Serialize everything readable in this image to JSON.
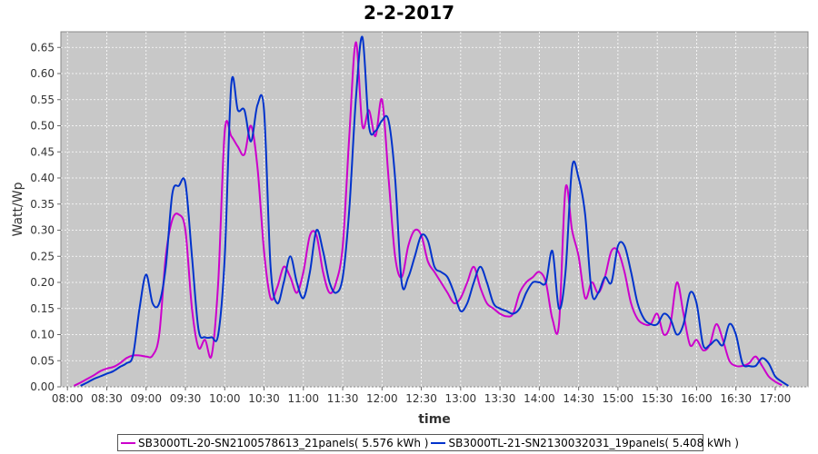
{
  "chart_data": {
    "type": "line",
    "title": "2-2-2017",
    "xlabel": "time",
    "ylabel": "Watt/Wp",
    "xlim": [
      "07:55",
      "17:25"
    ],
    "ylim": [
      0,
      0.68
    ],
    "yticks": [
      0.0,
      0.05,
      0.1,
      0.15,
      0.2,
      0.25,
      0.3,
      0.35,
      0.4,
      0.45,
      0.5,
      0.55,
      0.6,
      0.65
    ],
    "xticks": [
      "08:00",
      "08:30",
      "09:00",
      "09:30",
      "10:00",
      "10:30",
      "11:00",
      "11:30",
      "12:00",
      "12:30",
      "13:00",
      "13:30",
      "14:00",
      "14:30",
      "15:00",
      "15:30",
      "16:00",
      "16:30",
      "17:00"
    ],
    "grid": true,
    "plot_background": "#c8c8c8",
    "legend_position": "bottom",
    "series": [
      {
        "name": "SB3000TL-20-SN2100578613_21panels( 5.576 kWh )",
        "color": "#cc00cc",
        "points": [
          [
            "08:05",
            0.002
          ],
          [
            "08:10",
            0.008
          ],
          [
            "08:15",
            0.015
          ],
          [
            "08:20",
            0.022
          ],
          [
            "08:25",
            0.03
          ],
          [
            "08:30",
            0.035
          ],
          [
            "08:35",
            0.038
          ],
          [
            "08:40",
            0.045
          ],
          [
            "08:45",
            0.055
          ],
          [
            "08:50",
            0.06
          ],
          [
            "08:55",
            0.06
          ],
          [
            "09:00",
            0.058
          ],
          [
            "09:05",
            0.06
          ],
          [
            "09:10",
            0.1
          ],
          [
            "09:15",
            0.25
          ],
          [
            "09:20",
            0.32
          ],
          [
            "09:25",
            0.33
          ],
          [
            "09:30",
            0.3
          ],
          [
            "09:35",
            0.15
          ],
          [
            "09:40",
            0.075
          ],
          [
            "09:45",
            0.09
          ],
          [
            "09:50",
            0.06
          ],
          [
            "09:55",
            0.2
          ],
          [
            "10:00",
            0.49
          ],
          [
            "10:05",
            0.48
          ],
          [
            "10:10",
            0.46
          ],
          [
            "10:15",
            0.445
          ],
          [
            "10:20",
            0.5
          ],
          [
            "10:25",
            0.42
          ],
          [
            "10:30",
            0.26
          ],
          [
            "10:35",
            0.17
          ],
          [
            "10:40",
            0.19
          ],
          [
            "10:45",
            0.23
          ],
          [
            "10:50",
            0.21
          ],
          [
            "10:55",
            0.18
          ],
          [
            "11:00",
            0.22
          ],
          [
            "11:05",
            0.29
          ],
          [
            "11:10",
            0.29
          ],
          [
            "11:15",
            0.22
          ],
          [
            "11:20",
            0.18
          ],
          [
            "11:25",
            0.2
          ],
          [
            "11:30",
            0.27
          ],
          [
            "11:35",
            0.48
          ],
          [
            "11:40",
            0.66
          ],
          [
            "11:45",
            0.5
          ],
          [
            "11:50",
            0.53
          ],
          [
            "11:55",
            0.48
          ],
          [
            "12:00",
            0.55
          ],
          [
            "12:05",
            0.4
          ],
          [
            "12:10",
            0.25
          ],
          [
            "12:15",
            0.21
          ],
          [
            "12:20",
            0.27
          ],
          [
            "12:25",
            0.3
          ],
          [
            "12:30",
            0.29
          ],
          [
            "12:35",
            0.24
          ],
          [
            "12:40",
            0.22
          ],
          [
            "12:45",
            0.2
          ],
          [
            "12:50",
            0.18
          ],
          [
            "12:55",
            0.16
          ],
          [
            "13:00",
            0.17
          ],
          [
            "13:05",
            0.2
          ],
          [
            "13:10",
            0.23
          ],
          [
            "13:15",
            0.19
          ],
          [
            "13:20",
            0.16
          ],
          [
            "13:25",
            0.15
          ],
          [
            "13:30",
            0.14
          ],
          [
            "13:35",
            0.135
          ],
          [
            "13:40",
            0.14
          ],
          [
            "13:45",
            0.18
          ],
          [
            "13:50",
            0.2
          ],
          [
            "13:55",
            0.21
          ],
          [
            "14:00",
            0.22
          ],
          [
            "14:05",
            0.2
          ],
          [
            "14:10",
            0.13
          ],
          [
            "14:15",
            0.12
          ],
          [
            "14:20",
            0.38
          ],
          [
            "14:25",
            0.3
          ],
          [
            "14:30",
            0.25
          ],
          [
            "14:35",
            0.17
          ],
          [
            "14:40",
            0.2
          ],
          [
            "14:45",
            0.18
          ],
          [
            "14:50",
            0.21
          ],
          [
            "14:55",
            0.26
          ],
          [
            "15:00",
            0.26
          ],
          [
            "15:05",
            0.22
          ],
          [
            "15:10",
            0.16
          ],
          [
            "15:15",
            0.13
          ],
          [
            "15:20",
            0.12
          ],
          [
            "15:25",
            0.12
          ],
          [
            "15:30",
            0.14
          ],
          [
            "15:35",
            0.1
          ],
          [
            "15:40",
            0.12
          ],
          [
            "15:45",
            0.2
          ],
          [
            "15:50",
            0.14
          ],
          [
            "15:55",
            0.08
          ],
          [
            "16:00",
            0.09
          ],
          [
            "16:05",
            0.07
          ],
          [
            "16:10",
            0.08
          ],
          [
            "16:15",
            0.12
          ],
          [
            "16:20",
            0.09
          ],
          [
            "16:25",
            0.05
          ],
          [
            "16:30",
            0.04
          ],
          [
            "16:35",
            0.04
          ],
          [
            "16:40",
            0.045
          ],
          [
            "16:45",
            0.058
          ],
          [
            "16:50",
            0.04
          ],
          [
            "16:55",
            0.02
          ],
          [
            "17:00",
            0.01
          ],
          [
            "17:05",
            0.003
          ]
        ]
      },
      {
        "name": "SB3000TL-21-SN2130032031_19panels( 5.408 kWh )",
        "color": "#0033cc",
        "points": [
          [
            "08:10",
            0.002
          ],
          [
            "08:15",
            0.008
          ],
          [
            "08:20",
            0.015
          ],
          [
            "08:25",
            0.02
          ],
          [
            "08:30",
            0.025
          ],
          [
            "08:35",
            0.03
          ],
          [
            "08:40",
            0.038
          ],
          [
            "08:45",
            0.045
          ],
          [
            "08:50",
            0.06
          ],
          [
            "08:55",
            0.15
          ],
          [
            "09:00",
            0.215
          ],
          [
            "09:05",
            0.16
          ],
          [
            "09:10",
            0.16
          ],
          [
            "09:15",
            0.23
          ],
          [
            "09:20",
            0.37
          ],
          [
            "09:25",
            0.385
          ],
          [
            "09:30",
            0.39
          ],
          [
            "09:35",
            0.25
          ],
          [
            "09:40",
            0.11
          ],
          [
            "09:45",
            0.095
          ],
          [
            "09:50",
            0.095
          ],
          [
            "09:55",
            0.1
          ],
          [
            "10:00",
            0.25
          ],
          [
            "10:05",
            0.58
          ],
          [
            "10:10",
            0.53
          ],
          [
            "10:15",
            0.53
          ],
          [
            "10:20",
            0.47
          ],
          [
            "10:25",
            0.54
          ],
          [
            "10:30",
            0.53
          ],
          [
            "10:35",
            0.23
          ],
          [
            "10:40",
            0.16
          ],
          [
            "10:45",
            0.2
          ],
          [
            "10:50",
            0.25
          ],
          [
            "10:55",
            0.2
          ],
          [
            "11:00",
            0.17
          ],
          [
            "11:05",
            0.22
          ],
          [
            "11:10",
            0.3
          ],
          [
            "11:15",
            0.26
          ],
          [
            "11:20",
            0.2
          ],
          [
            "11:25",
            0.18
          ],
          [
            "11:30",
            0.21
          ],
          [
            "11:35",
            0.34
          ],
          [
            "11:40",
            0.55
          ],
          [
            "11:45",
            0.67
          ],
          [
            "11:50",
            0.5
          ],
          [
            "11:55",
            0.49
          ],
          [
            "12:00",
            0.51
          ],
          [
            "12:05",
            0.51
          ],
          [
            "12:10",
            0.4
          ],
          [
            "12:15",
            0.2
          ],
          [
            "12:20",
            0.21
          ],
          [
            "12:25",
            0.25
          ],
          [
            "12:30",
            0.29
          ],
          [
            "12:35",
            0.28
          ],
          [
            "12:40",
            0.23
          ],
          [
            "12:45",
            0.22
          ],
          [
            "12:50",
            0.21
          ],
          [
            "12:55",
            0.18
          ],
          [
            "13:00",
            0.145
          ],
          [
            "13:05",
            0.16
          ],
          [
            "13:10",
            0.2
          ],
          [
            "13:15",
            0.23
          ],
          [
            "13:20",
            0.2
          ],
          [
            "13:25",
            0.16
          ],
          [
            "13:30",
            0.15
          ],
          [
            "13:35",
            0.145
          ],
          [
            "13:40",
            0.14
          ],
          [
            "13:45",
            0.15
          ],
          [
            "13:50",
            0.18
          ],
          [
            "13:55",
            0.2
          ],
          [
            "14:00",
            0.2
          ],
          [
            "14:05",
            0.2
          ],
          [
            "14:10",
            0.26
          ],
          [
            "14:15",
            0.15
          ],
          [
            "14:20",
            0.22
          ],
          [
            "14:25",
            0.42
          ],
          [
            "14:30",
            0.4
          ],
          [
            "14:35",
            0.33
          ],
          [
            "14:40",
            0.18
          ],
          [
            "14:45",
            0.18
          ],
          [
            "14:50",
            0.21
          ],
          [
            "14:55",
            0.2
          ],
          [
            "15:00",
            0.27
          ],
          [
            "15:05",
            0.27
          ],
          [
            "15:10",
            0.22
          ],
          [
            "15:15",
            0.16
          ],
          [
            "15:20",
            0.13
          ],
          [
            "15:25",
            0.12
          ],
          [
            "15:30",
            0.12
          ],
          [
            "15:35",
            0.14
          ],
          [
            "15:40",
            0.13
          ],
          [
            "15:45",
            0.1
          ],
          [
            "15:50",
            0.12
          ],
          [
            "15:55",
            0.18
          ],
          [
            "16:00",
            0.16
          ],
          [
            "16:05",
            0.08
          ],
          [
            "16:10",
            0.08
          ],
          [
            "16:15",
            0.09
          ],
          [
            "16:20",
            0.08
          ],
          [
            "16:25",
            0.12
          ],
          [
            "16:30",
            0.1
          ],
          [
            "16:35",
            0.045
          ],
          [
            "16:40",
            0.04
          ],
          [
            "16:45",
            0.04
          ],
          [
            "16:50",
            0.055
          ],
          [
            "16:55",
            0.045
          ],
          [
            "17:00",
            0.02
          ],
          [
            "17:05",
            0.01
          ],
          [
            "17:10",
            0.002
          ]
        ]
      }
    ]
  }
}
